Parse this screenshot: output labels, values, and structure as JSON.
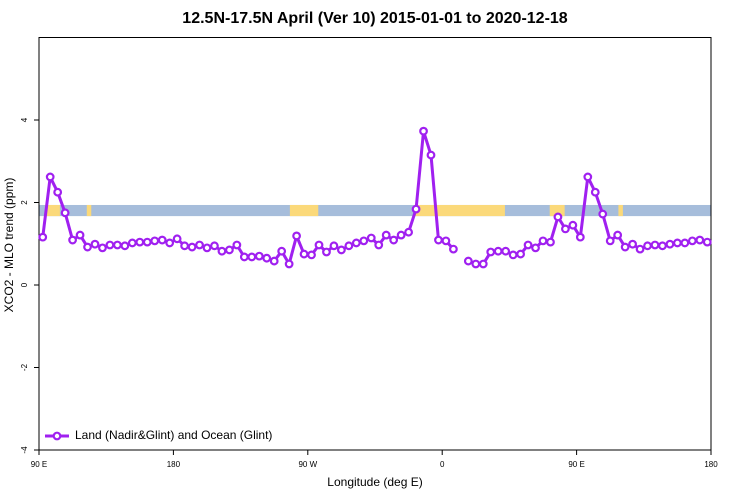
{
  "chart_data": {
    "type": "line",
    "title": "12.5N-17.5N April (Ver 10)   2015-01-01 to 2020-12-18",
    "x_label": "Longitude (deg E)",
    "y_label": "XCO2 - MLO trend (ppm)",
    "x": [
      92.5,
      97.5,
      102.5,
      107.5,
      112.5,
      117.5,
      122.5,
      127.5,
      132.5,
      137.5,
      142.5,
      147.5,
      152.5,
      157.5,
      162.5,
      167.5,
      172.5,
      177.5,
      182.5,
      187.5,
      192.5,
      197.5,
      202.5,
      207.5,
      212.5,
      217.5,
      222.5,
      227.5,
      232.5,
      237.5,
      242.5,
      247.5,
      252.5,
      257.5,
      262.5,
      267.5,
      272.5,
      277.5,
      282.5,
      287.5,
      292.5,
      297.5,
      302.5,
      307.5,
      312.5,
      317.5,
      322.5,
      327.5,
      332.5,
      337.5,
      342.5,
      347.5,
      352.5,
      357.5,
      362.5,
      367.5,
      372.5,
      377.5,
      382.5,
      387.5,
      392.5,
      397.5,
      402.5,
      407.5,
      412.5,
      417.5,
      422.5,
      427.5,
      432.5,
      437.5,
      442.5,
      447.5,
      452.5,
      457.5,
      462.5,
      467.5,
      472.5,
      477.5,
      482.5,
      487.5,
      492.5,
      497.5,
      502.5,
      507.5,
      512.5,
      517.5,
      522.5,
      527.5,
      532.5,
      537.5
    ],
    "series": [
      {
        "name": "Land (Nadir&Glint) and Ocean (Glint)",
        "color": "#a020f0",
        "values": [
          1.16,
          2.62,
          2.25,
          1.75,
          1.09,
          1.21,
          0.92,
          0.99,
          0.9,
          0.97,
          0.97,
          0.95,
          1.02,
          1.04,
          1.04,
          1.07,
          1.09,
          1.02,
          1.12,
          0.95,
          0.92,
          0.97,
          0.9,
          0.95,
          0.82,
          0.85,
          0.97,
          0.68,
          0.68,
          0.7,
          0.65,
          0.58,
          0.82,
          0.51,
          1.19,
          0.75,
          0.73,
          0.97,
          0.8,
          0.95,
          0.85,
          0.95,
          1.02,
          1.07,
          1.14,
          0.97,
          1.21,
          1.09,
          1.21,
          1.28,
          1.84,
          3.73,
          3.15,
          1.09,
          1.07,
          0.87,
          null,
          0.58,
          0.51,
          0.51,
          0.8,
          0.82,
          0.82,
          0.73,
          0.75,
          0.97,
          0.9,
          1.07,
          1.04,
          1.65,
          1.36,
          1.45,
          1.16,
          2.62,
          2.25,
          1.72,
          1.07,
          1.21,
          0.92,
          0.99,
          0.87,
          0.95,
          0.97,
          0.95,
          0.99,
          1.02,
          1.02,
          1.07,
          1.09,
          1.04
        ]
      }
    ],
    "xlim": [
      90,
      540
    ],
    "xticks": [
      {
        "value": 90,
        "label": "90 E"
      },
      180,
      {
        "value": 270,
        "label": "90 W"
      },
      {
        "value": 360,
        "label": "0"
      },
      {
        "value": 450,
        "label": "90 E"
      },
      {
        "value": 540,
        "label": "180"
      }
    ],
    "ylim": [
      -4,
      6
    ],
    "yticks": [
      -4,
      -2,
      0,
      2,
      4
    ],
    "legend": "bottom-left",
    "surface_band": {
      "ylim": [
        1.67,
        1.94
      ],
      "ocean_color": "#a6bddb",
      "land_color": "#fbd97a",
      "land": [
        [
          94,
          104
        ],
        [
          122,
          125
        ],
        [
          258,
          277
        ],
        [
          341,
          402
        ],
        [
          432,
          442
        ],
        [
          478,
          481
        ]
      ]
    }
  }
}
